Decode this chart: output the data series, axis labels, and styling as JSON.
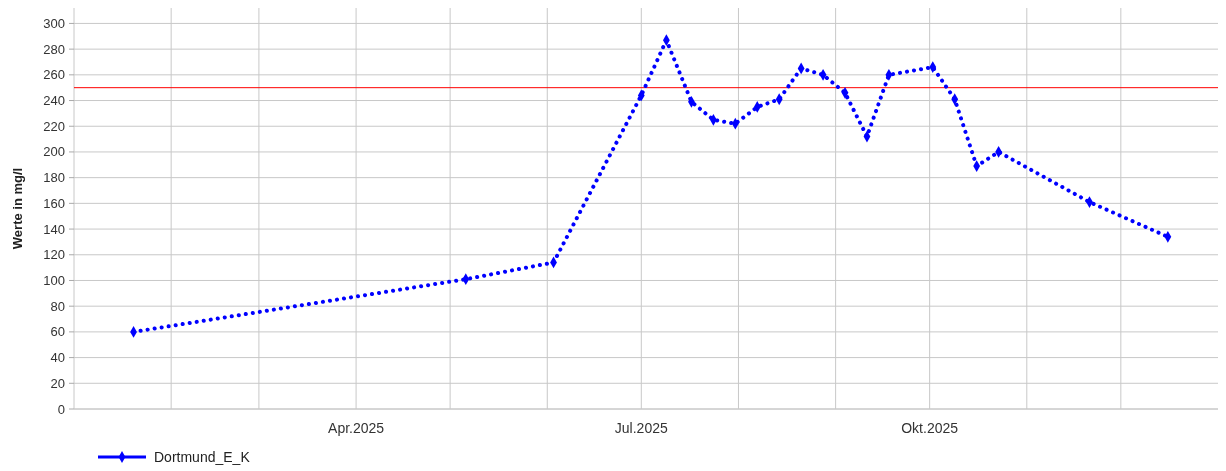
{
  "chart_data": {
    "type": "line",
    "ylabel": "Werte in mg/l",
    "x": [
      "2025-01-20",
      "2025-05-06",
      "2025-06-03",
      "2025-07-01",
      "2025-07-09",
      "2025-07-17",
      "2025-07-24",
      "2025-07-31",
      "2025-08-07",
      "2025-08-14",
      "2025-08-21",
      "2025-08-28",
      "2025-09-04",
      "2025-09-11",
      "2025-09-18",
      "2025-10-02",
      "2025-10-09",
      "2025-10-16",
      "2025-10-23",
      "2025-11-21",
      "2025-12-16"
    ],
    "series": [
      {
        "name": "Dortmund_E_K",
        "color": "#0000ff",
        "values": [
          60,
          101,
          114,
          244,
          287,
          239,
          225,
          222,
          235,
          241,
          265,
          260,
          246,
          212,
          260,
          266,
          241,
          189,
          200,
          161,
          134
        ]
      }
    ],
    "xlim": [
      "2025-01-01",
      "2026-01-01"
    ],
    "xticks": [
      {
        "value": "2025-02-01",
        "label": null
      },
      {
        "value": "2025-03-01",
        "label": null
      },
      {
        "value": "2025-04-01",
        "label": "Apr.2025"
      },
      {
        "value": "2025-05-01",
        "label": null
      },
      {
        "value": "2025-06-01",
        "label": null
      },
      {
        "value": "2025-07-01",
        "label": "Jul.2025"
      },
      {
        "value": "2025-08-01",
        "label": null
      },
      {
        "value": "2025-09-01",
        "label": null
      },
      {
        "value": "2025-10-01",
        "label": "Okt.2025"
      },
      {
        "value": "2025-11-01",
        "label": null
      },
      {
        "value": "2025-12-01",
        "label": null
      }
    ],
    "ylim": [
      0,
      312
    ],
    "yticks": [
      0,
      20,
      40,
      60,
      80,
      100,
      120,
      140,
      160,
      180,
      200,
      220,
      240,
      260,
      280,
      300
    ],
    "ref_lines": [
      {
        "axis": "y",
        "value": 250,
        "color": "#ff0000"
      }
    ],
    "grid": true,
    "legend": "bottom left",
    "marker": "diamond",
    "line_style": "dotted"
  }
}
